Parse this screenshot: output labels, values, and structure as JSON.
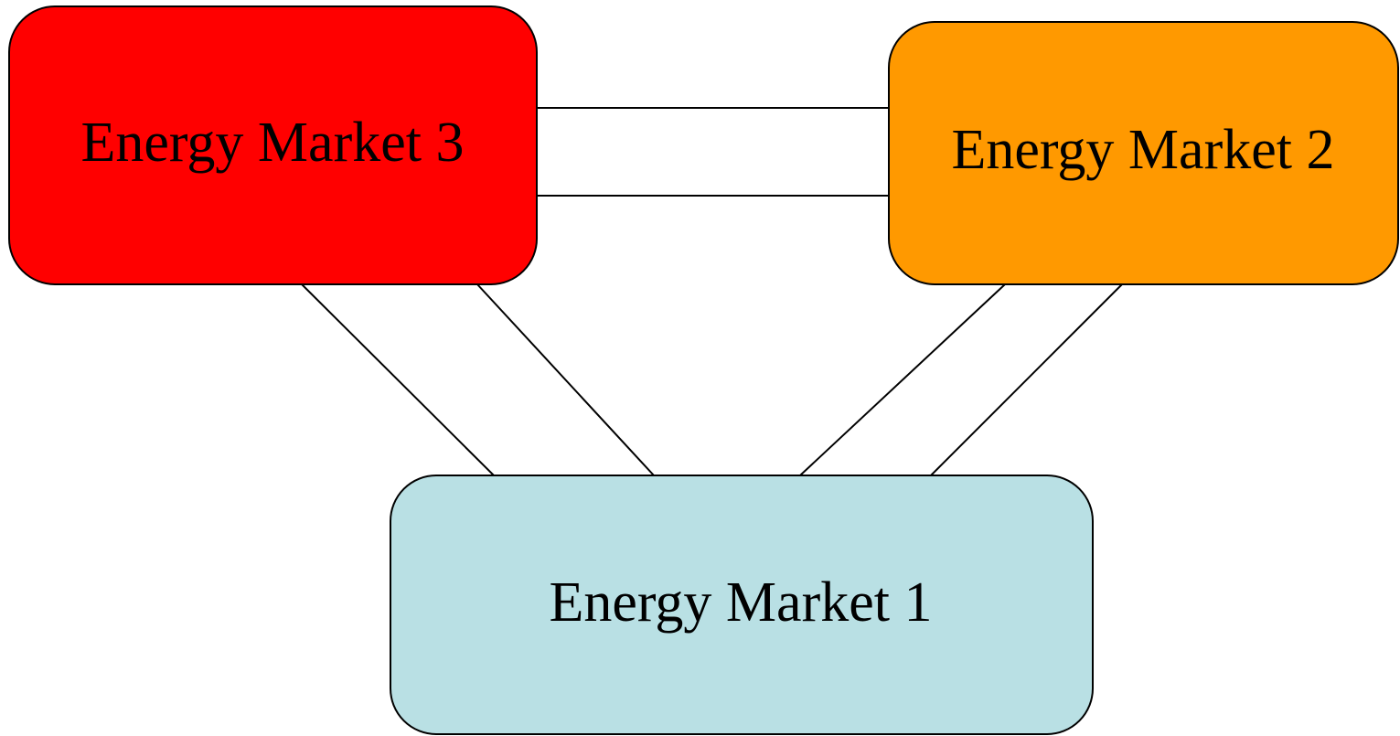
{
  "nodes": [
    {
      "label": "Energy Market 3"
    },
    {
      "label": "Energy Market 2"
    },
    {
      "label": "Energy Market 1"
    }
  ]
}
